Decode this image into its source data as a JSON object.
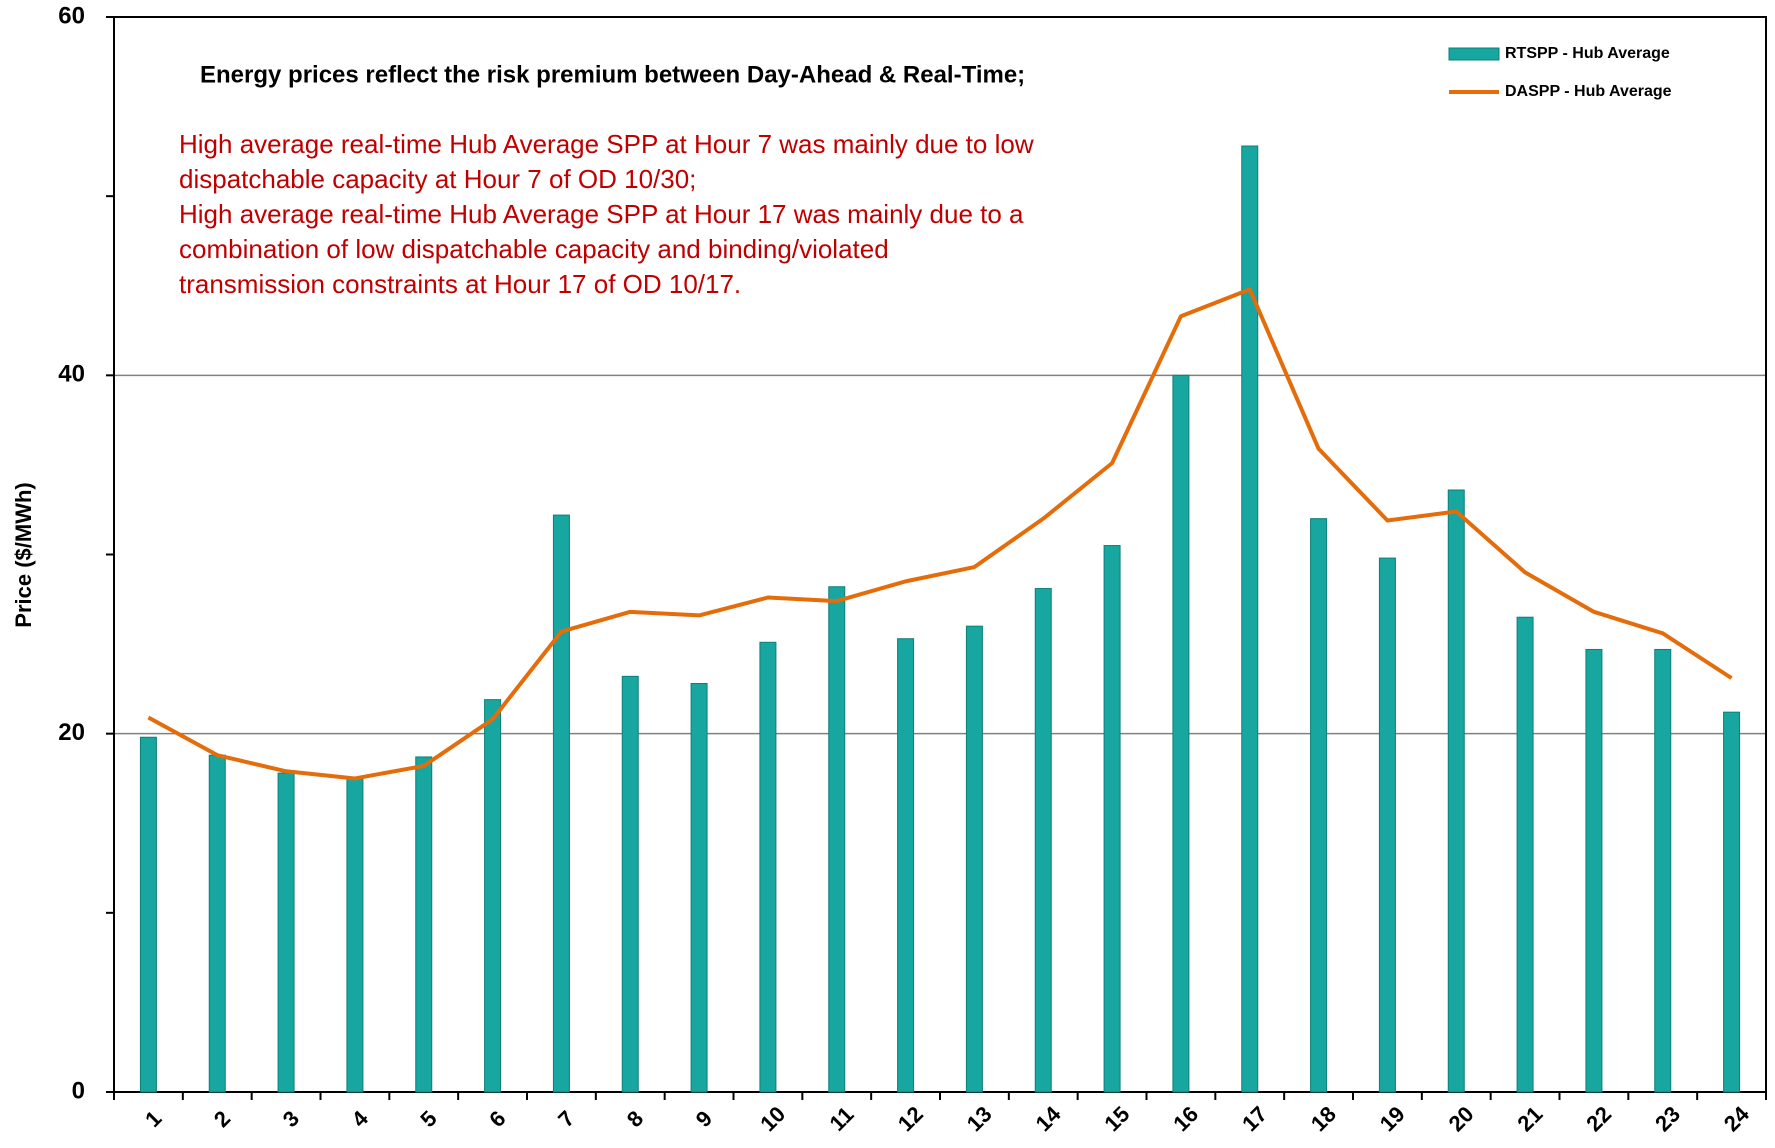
{
  "chart_data": {
    "type": "bar_line",
    "title": "Energy prices reflect the risk premium between Day-Ahead & Real-Time;",
    "notes": [
      "High average real-time Hub Average SPP at Hour 7 was mainly due to low",
      "dispatchable capacity at  Hour 7 of OD 10/30;",
      "High average real-time Hub Average SPP at Hour 17 was mainly due to a",
      "combination of low dispatchable capacity and binding/violated",
      "transmission constraints at Hour 17 of OD 10/17."
    ],
    "ylabel": "Price ($/MWh)",
    "categories": [
      "1",
      "2",
      "3",
      "4",
      "5",
      "6",
      "7",
      "8",
      "9",
      "10",
      "11",
      "12",
      "13",
      "14",
      "15",
      "16",
      "17",
      "18",
      "19",
      "20",
      "21",
      "22",
      "23",
      "24"
    ],
    "series": [
      {
        "name": "RTSPP - Hub Average",
        "type": "bar",
        "color": "#17a6a0",
        "values": [
          19.8,
          18.8,
          17.8,
          17.5,
          18.7,
          21.9,
          32.2,
          23.2,
          22.8,
          25.1,
          28.2,
          25.3,
          26.0,
          28.1,
          30.5,
          40.0,
          52.8,
          32.0,
          29.8,
          33.6,
          26.5,
          24.7,
          24.7,
          21.2
        ]
      },
      {
        "name": "DASPP - Hub Average",
        "type": "line",
        "color": "#e46c0a",
        "values": [
          20.9,
          18.8,
          17.9,
          17.5,
          18.2,
          20.8,
          25.7,
          26.8,
          26.6,
          27.6,
          27.4,
          28.5,
          29.3,
          32.0,
          35.1,
          43.3,
          44.8,
          35.9,
          31.9,
          32.4,
          29.0,
          26.8,
          25.6,
          23.1
        ]
      }
    ],
    "ylim": [
      0,
      60
    ],
    "yticks": [
      0,
      20,
      40,
      60
    ],
    "yminorticks": [
      10,
      30,
      50
    ],
    "grid": true,
    "legend": "top-right"
  }
}
